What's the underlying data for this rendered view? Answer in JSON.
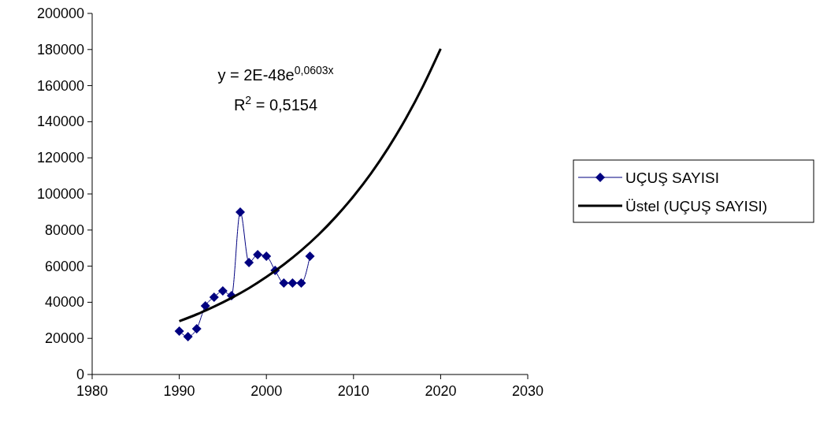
{
  "chart_data": {
    "type": "line",
    "xlim": [
      1980,
      2030
    ],
    "xticks": [
      1980,
      1990,
      2000,
      2010,
      2020,
      2030
    ],
    "ylim": [
      0,
      200000
    ],
    "yticks": [
      0,
      20000,
      40000,
      60000,
      80000,
      100000,
      120000,
      140000,
      160000,
      180000,
      200000
    ],
    "legend": "right",
    "grid": false,
    "series": [
      {
        "name": "UÇUŞ SAYISI",
        "color": "#000080",
        "marker": "diamond",
        "x": [
          1990,
          1991,
          1992,
          1993,
          1994,
          1995,
          1996,
          1997,
          1998,
          1999,
          2000,
          2001,
          2002,
          2003,
          2004,
          2005
        ],
        "values": [
          24000,
          21000,
          25300,
          38000,
          42800,
          46300,
          43700,
          90000,
          62000,
          66400,
          65500,
          57600,
          50700,
          50700,
          50700,
          65500
        ]
      },
      {
        "name": "Üstel (UÇUŞ SAYISI)",
        "color": "#000000",
        "marker": "none",
        "x": [
          1990,
          1992,
          1994,
          1996,
          1998,
          2000,
          2002,
          2004,
          2006,
          2008,
          2010,
          2012,
          2014,
          2016,
          2018,
          2020
        ],
        "values": [
          29500,
          33300,
          37600,
          42400,
          47800,
          54000,
          60900,
          68700,
          77500,
          87500,
          98700,
          111300,
          125600,
          141700,
          159900,
          180400
        ]
      }
    ],
    "annotations": [
      "y = 2E-48e$^{0,0603x}$",
      "R$^{2}$ = 0,5154"
    ]
  }
}
